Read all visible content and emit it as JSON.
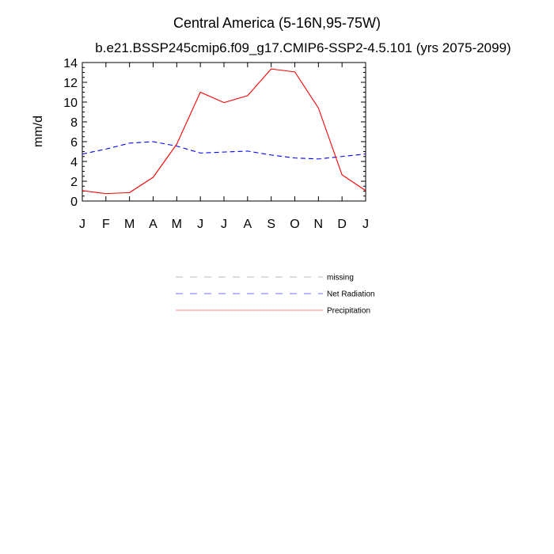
{
  "chart_data": {
    "type": "line",
    "title": "Central America (5-16N,95-75W)",
    "subtitle": "b.e21.BSSP245cmip6.f09_g17.CMIP6-SSP2-4.5.101 (yrs 2075-2099)",
    "ylabel": "mm/d",
    "xlabel": "",
    "ylim": [
      0,
      14
    ],
    "yticks": [
      "0",
      "2",
      "4",
      "6",
      "8",
      "10",
      "12",
      "14"
    ],
    "categories": [
      "J",
      "F",
      "M",
      "A",
      "M",
      "J",
      "J",
      "A",
      "S",
      "O",
      "N",
      "D",
      "J"
    ],
    "series": [
      {
        "name": "Net Radiation",
        "color": "#0000ff",
        "style": "dashed",
        "values": [
          4.75,
          5.25,
          5.85,
          6.0,
          5.55,
          4.85,
          4.95,
          5.05,
          4.65,
          4.35,
          4.25,
          4.5,
          4.75
        ]
      },
      {
        "name": "Precipitation",
        "color": "#ff0000",
        "style": "solid",
        "values": [
          1.05,
          0.75,
          0.85,
          2.4,
          5.75,
          11.0,
          9.95,
          10.65,
          13.35,
          13.05,
          9.4,
          2.65,
          1.05
        ]
      }
    ],
    "legend": {
      "position": "below",
      "entries": [
        {
          "label": "missing",
          "color": "#808080",
          "style": "dashed"
        },
        {
          "label": "Net Radiation",
          "color": "#0000ff",
          "style": "dashed"
        },
        {
          "label": "Precipitation",
          "color": "#ff0000",
          "style": "solid"
        }
      ]
    }
  }
}
